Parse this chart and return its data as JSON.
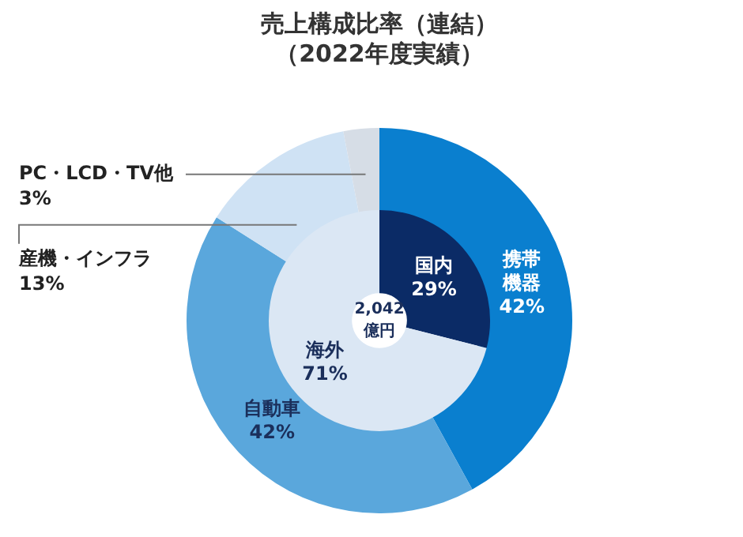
{
  "chart_data": [
    {
      "type": "donut",
      "title": "売上構成比率（連結）",
      "subtitle": "（2022年度実績）",
      "categories": [
        "携帯機器",
        "自動車",
        "産機・インフラ",
        "PC・LCD・TV他"
      ],
      "values": [
        42,
        42,
        13,
        3
      ],
      "value_labels": [
        "42%",
        "42%",
        "13%",
        "3%"
      ],
      "colors": [
        "#0a7fcf",
        "#5aa7dc",
        "#cfe2f4",
        "#d6dde6"
      ]
    },
    {
      "type": "donut",
      "categories": [
        "国内",
        "海外"
      ],
      "values": [
        29,
        71
      ],
      "value_labels": [
        "29%",
        "71%"
      ],
      "colors": [
        "#0b2b66",
        "#dbe7f4"
      ],
      "annotations": [
        "2,042\n億円"
      ]
    }
  ]
}
